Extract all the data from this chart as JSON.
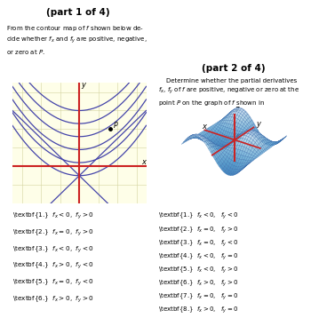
{
  "title1": "(part 1 of 4)",
  "title2": "(part 2 of 4)",
  "text1": "From the contour map of $f$ shown below de-\ncide whether $f_x$ and $f_y$ are positive, negative,\nor zero at $P$.",
  "text2": "    Determine whether the partial derivatives\n$f_x$, $f_y$ of $f$ are positive, negative or zero at the\npoint $P$ on the graph of $f$ shown in",
  "answers1": [
    "\\textbf{1.}  $f_x < 0$,  $f_y > 0$",
    "\\textbf{2.}  $f_x = 0$,  $f_y > 0$",
    "\\textbf{3.}  $f_x < 0$,  $f_y < 0$",
    "\\textbf{4.}  $f_x > 0$,  $f_y < 0$",
    "\\textbf{5.}  $f_x = 0$,  $f_y < 0$",
    "\\textbf{6.}  $f_x > 0$,  $f_y > 0$"
  ],
  "answers2": [
    "\\textbf{1.}  $f_x < 0$,  $\\;f_y < 0$",
    "\\textbf{2.}  $f_x = 0$,  $\\;f_y > 0$",
    "\\textbf{3.}  $f_x = 0$,  $\\;f_y < 0$",
    "\\textbf{4.}  $f_x < 0$,  $\\;f_y = 0$",
    "\\textbf{5.}  $f_x < 0$,  $\\;f_y > 0$",
    "\\textbf{6.}  $f_x > 0$,  $\\;f_y > 0$",
    "\\textbf{7.}  $f_x = 0$,  $\\;f_y = 0$",
    "\\textbf{8.}  $f_x > 0$,  $\\;f_y = 0$"
  ],
  "bg_color": "#fefee8",
  "grid_color": "#d4d4a0",
  "contour_color": "#4444aa",
  "red_color": "#cc2222",
  "surface_cmap": "Blues",
  "white": "#ffffff"
}
